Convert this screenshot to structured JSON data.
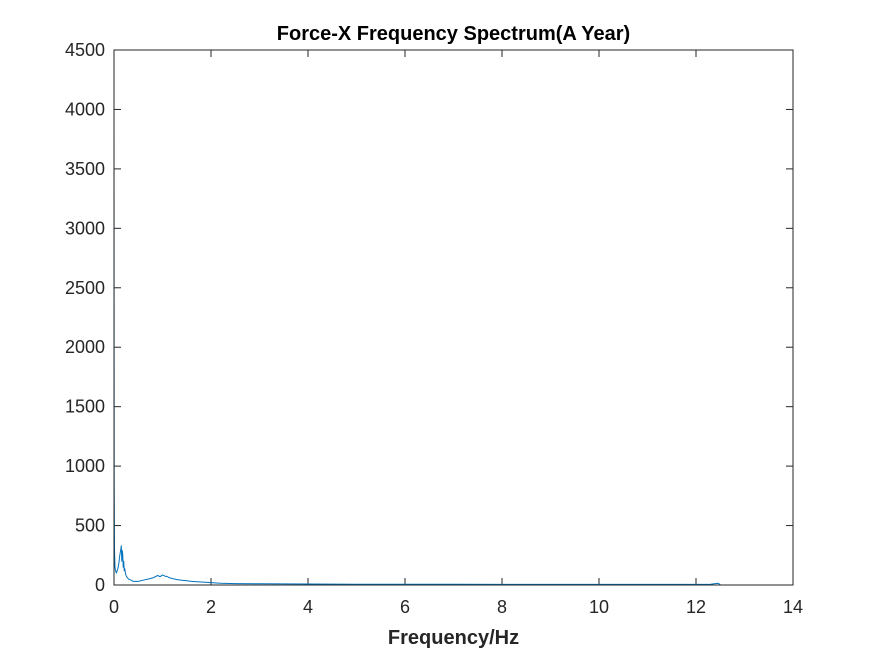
{
  "chart_data": {
    "type": "line",
    "title": "Force-X Frequency Spectrum(A Year)",
    "xlabel": "Frequency/Hz",
    "ylabel": "",
    "xlim": [
      0,
      14
    ],
    "ylim": [
      0,
      4500
    ],
    "xticks": [
      0,
      2,
      4,
      6,
      8,
      10,
      12,
      14
    ],
    "yticks": [
      0,
      500,
      1000,
      1500,
      2000,
      2500,
      3000,
      3500,
      4000,
      4500
    ],
    "grid": false,
    "series_color": "#0072BD",
    "series": [
      {
        "x": [
          0,
          0.005,
          0.01,
          0.02,
          0.03,
          0.05,
          0.08,
          0.1,
          0.12,
          0.14,
          0.15,
          0.16,
          0.17,
          0.18,
          0.19,
          0.2,
          0.21,
          0.22,
          0.24,
          0.26,
          0.3,
          0.35,
          0.4,
          0.5,
          0.6,
          0.7,
          0.8,
          0.9,
          0.95,
          1.0,
          1.05,
          1.1,
          1.15,
          1.2,
          1.3,
          1.4,
          1.5,
          1.6,
          1.8,
          2.0,
          2.2,
          2.5,
          3.0,
          3.5,
          4.0,
          5.0,
          6.0,
          7.0,
          8.0,
          9.0,
          10.0,
          11.0,
          12.0,
          12.3,
          12.45,
          12.5
        ],
        "y": [
          4200,
          900,
          300,
          150,
          120,
          100,
          140,
          180,
          250,
          300,
          330,
          200,
          290,
          260,
          150,
          200,
          120,
          140,
          90,
          70,
          50,
          40,
          30,
          30,
          40,
          50,
          60,
          80,
          70,
          85,
          75,
          70,
          60,
          55,
          45,
          40,
          35,
          30,
          25,
          20,
          15,
          12,
          10,
          9,
          8,
          7,
          6,
          6,
          5,
          5,
          5,
          5,
          5,
          6,
          15,
          5
        ]
      }
    ]
  }
}
